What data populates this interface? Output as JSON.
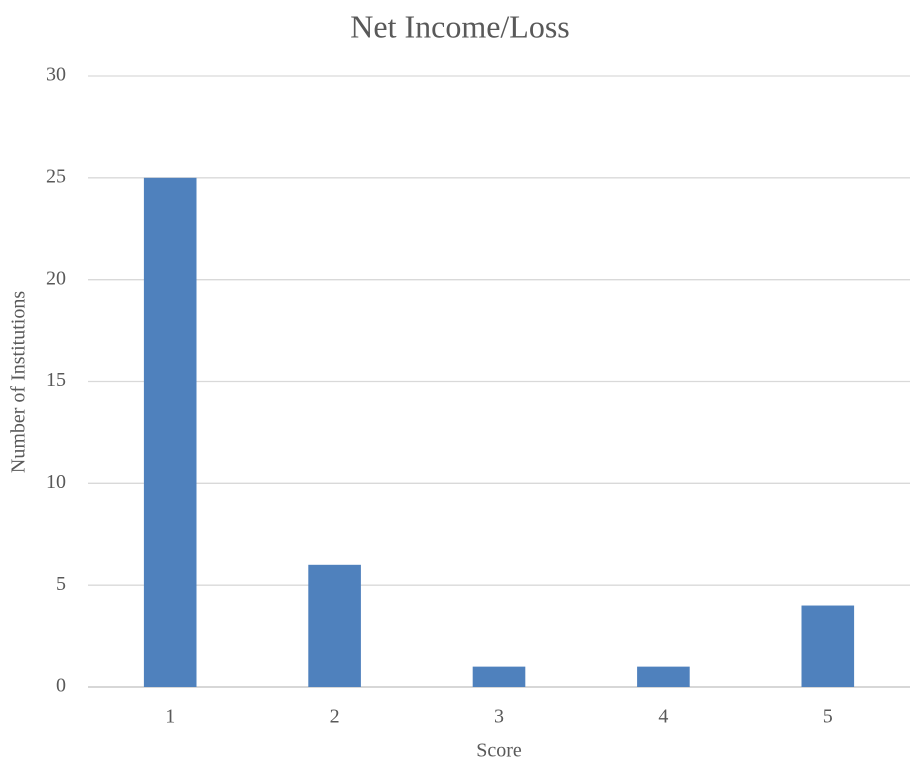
{
  "chart_data": {
    "type": "bar",
    "title": "Net Income/Loss",
    "x_label": "Score",
    "y_label": "Number of Institutions",
    "categories": [
      "1",
      "2",
      "3",
      "4",
      "5"
    ],
    "values": [
      25,
      6,
      1,
      1,
      4
    ],
    "color": "#4f81bd",
    "ylim": [
      0,
      30
    ],
    "yticks": [
      0,
      5,
      10,
      15,
      20,
      25,
      30
    ],
    "grid": true
  }
}
